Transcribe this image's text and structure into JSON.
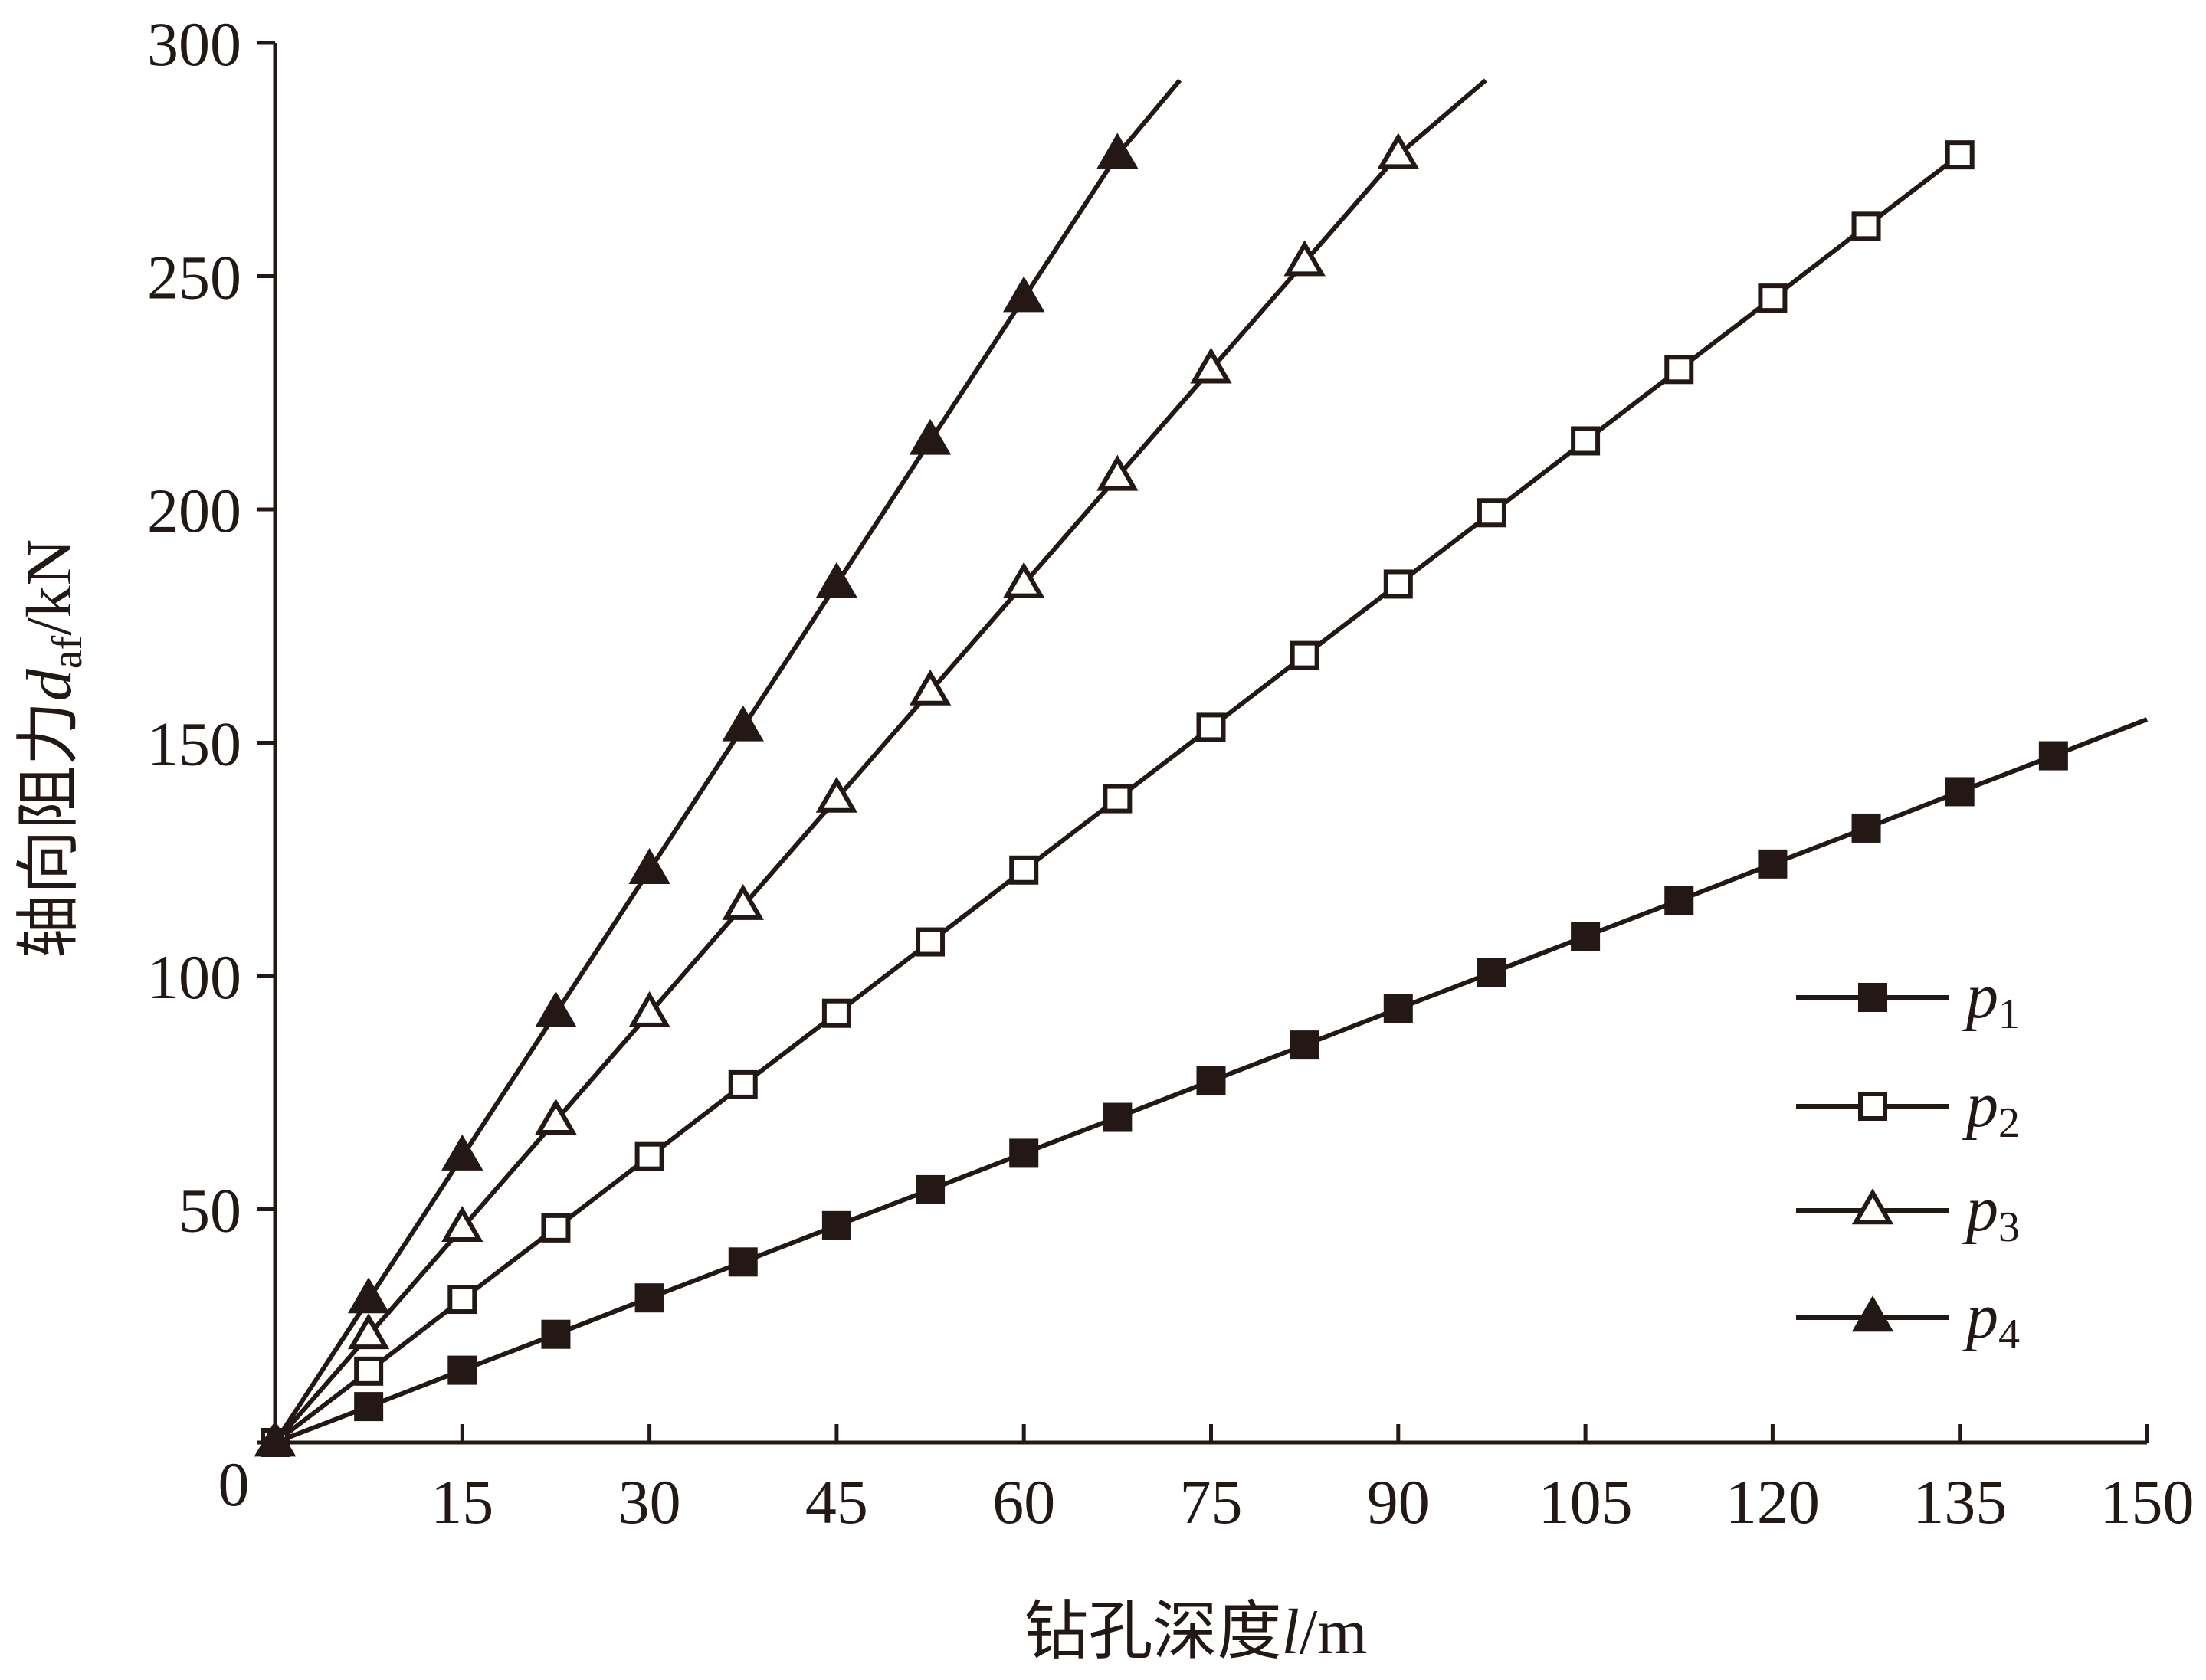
{
  "chart_data": {
    "type": "line",
    "title": "",
    "xlabel": {
      "main": "钻孔深度",
      "var": "l",
      "unit": "/m"
    },
    "ylabel": {
      "main": "轴向阻力",
      "var": "d",
      "sub": "af",
      "unit": "/kN"
    },
    "xlim": [
      0,
      150
    ],
    "ylim": [
      0,
      300
    ],
    "xticks": [
      0,
      15,
      30,
      45,
      60,
      75,
      90,
      105,
      120,
      135,
      150
    ],
    "yticks": [
      0,
      50,
      100,
      150,
      200,
      250,
      300
    ],
    "origin_label": "0",
    "grid": false,
    "legend_position": "right",
    "series": [
      {
        "name": "p",
        "sub": "1",
        "marker": "square-filled",
        "x": [
          0,
          7.5,
          15,
          22.5,
          30,
          37.5,
          45,
          52.5,
          60,
          67.5,
          75,
          82.5,
          90,
          97.5,
          105,
          112.5,
          120,
          127.5,
          135,
          142.5
        ],
        "y": [
          0,
          7.7,
          15.5,
          23.2,
          31,
          38.7,
          46.5,
          54.2,
          62,
          69.7,
          77.5,
          85.2,
          93,
          100.7,
          108.5,
          116.2,
          124,
          131.7,
          139.5,
          147.2
        ],
        "line_end": [
          150,
          155
        ]
      },
      {
        "name": "p",
        "sub": "2",
        "marker": "square-open",
        "x": [
          0,
          7.5,
          15,
          22.5,
          30,
          37.5,
          45,
          52.5,
          60,
          67.5,
          75,
          82.5,
          90,
          97.5,
          105,
          112.5,
          120,
          127.5,
          135
        ],
        "y": [
          0,
          15.3,
          30.7,
          46,
          61.3,
          76.7,
          92,
          107.3,
          122.7,
          138,
          153.3,
          168.7,
          184,
          199.3,
          214.7,
          230,
          245.3,
          260.7,
          276
        ],
        "line_end": [
          135,
          276
        ]
      },
      {
        "name": "p",
        "sub": "3",
        "marker": "triangle-open",
        "x": [
          0,
          7.5,
          15,
          22.5,
          30,
          37.5,
          45,
          52.5,
          60,
          67.5,
          75,
          82.5,
          90
        ],
        "y": [
          0,
          23,
          46,
          69,
          92,
          115,
          138,
          161,
          184,
          207,
          230,
          253,
          276
        ],
        "line_end": [
          97,
          292
        ]
      },
      {
        "name": "p",
        "sub": "4",
        "marker": "triangle-filled",
        "x": [
          0,
          7.5,
          15,
          22.5,
          30,
          37.5,
          45,
          52.5,
          60,
          67.5
        ],
        "y": [
          0,
          30.7,
          61.3,
          92,
          122.7,
          153.3,
          184,
          214.7,
          245.3,
          276
        ],
        "line_end": [
          72.5,
          292
        ]
      }
    ]
  }
}
